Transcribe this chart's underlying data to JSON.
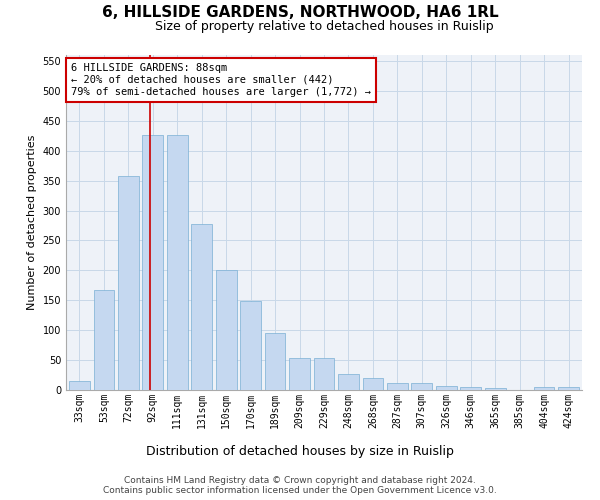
{
  "title": "6, HILLSIDE GARDENS, NORTHWOOD, HA6 1RL",
  "subtitle": "Size of property relative to detached houses in Ruislip",
  "xlabel": "Distribution of detached houses by size in Ruislip",
  "ylabel": "Number of detached properties",
  "categories": [
    "33sqm",
    "53sqm",
    "72sqm",
    "92sqm",
    "111sqm",
    "131sqm",
    "150sqm",
    "170sqm",
    "189sqm",
    "209sqm",
    "229sqm",
    "248sqm",
    "268sqm",
    "287sqm",
    "307sqm",
    "326sqm",
    "346sqm",
    "365sqm",
    "385sqm",
    "404sqm",
    "424sqm"
  ],
  "values": [
    15,
    168,
    357,
    427,
    427,
    278,
    200,
    148,
    96,
    54,
    54,
    27,
    20,
    12,
    12,
    6,
    5,
    3,
    0,
    5,
    5
  ],
  "bar_color": "#c5d8f0",
  "bar_edge_color": "#7aafd4",
  "grid_color": "#c8d8e8",
  "background_color": "#eef2f8",
  "annotation_box_color": "#cc0000",
  "annotation_text": "6 HILLSIDE GARDENS: 88sqm\n← 20% of detached houses are smaller (442)\n79% of semi-detached houses are larger (1,772) →",
  "vline_color": "#cc0000",
  "vline_pos": 2.88,
  "ylim": [
    0,
    560
  ],
  "yticks": [
    0,
    50,
    100,
    150,
    200,
    250,
    300,
    350,
    400,
    450,
    500,
    550
  ],
  "footer": "Contains HM Land Registry data © Crown copyright and database right 2024.\nContains public sector information licensed under the Open Government Licence v3.0.",
  "title_fontsize": 11,
  "subtitle_fontsize": 9,
  "xlabel_fontsize": 9,
  "ylabel_fontsize": 8,
  "tick_fontsize": 7,
  "annotation_fontsize": 7.5,
  "footer_fontsize": 6.5
}
